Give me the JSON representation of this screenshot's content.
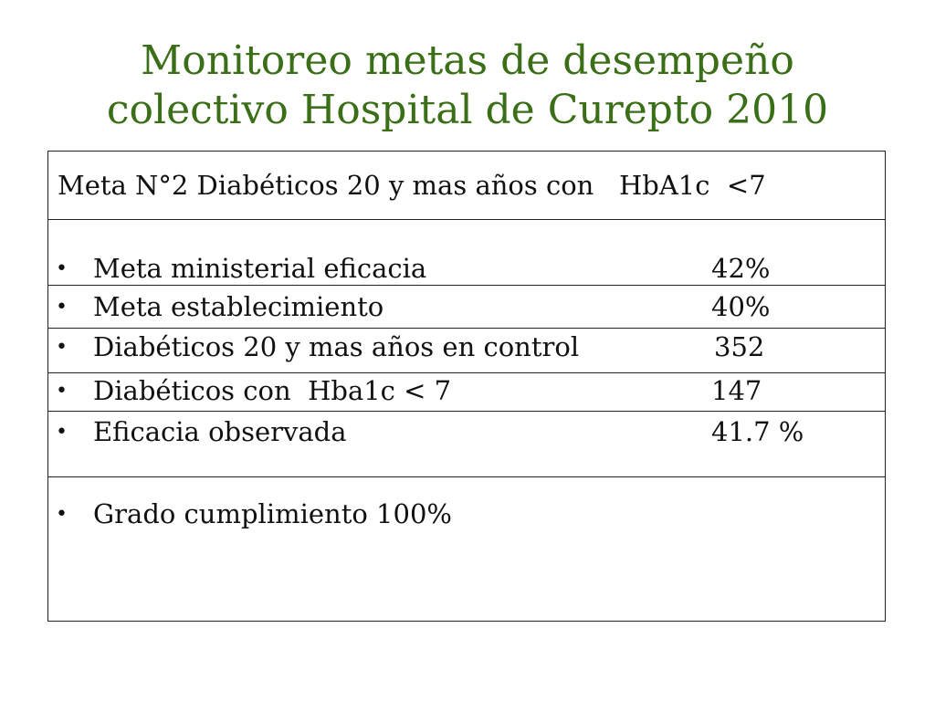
{
  "title": {
    "line1": "Monitoreo metas de desempeño",
    "line2": "colectivo Hospital de Curepto 2010"
  },
  "table": {
    "header": "Meta N°2 Diabéticos 20 y mas años con   HbA1c  <7",
    "bullet_char": "•",
    "rows": [
      {
        "label": "Meta ministerial eficacia",
        "value": "42%"
      },
      {
        "label": "Meta establecimiento",
        "value": "40%"
      },
      {
        "label": "Diabéticos 20 y mas años en control",
        "value": "352"
      },
      {
        "label": "Diabéticos con  Hba1c < 7",
        "value": "147"
      },
      {
        "label": "Eficacia observada",
        "value": "41.7 %"
      },
      {
        "label": "Grado cumplimiento 100%",
        "value": ""
      }
    ]
  },
  "colors": {
    "title": "#3a6e17",
    "text": "#111111",
    "border": "#222222"
  }
}
